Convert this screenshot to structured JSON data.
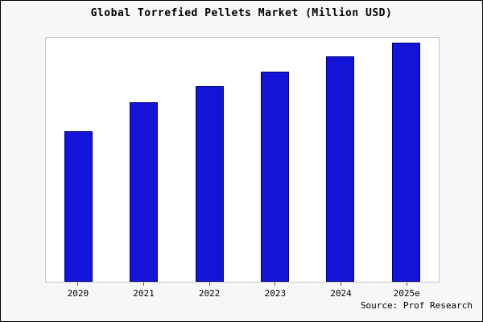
{
  "chart_data": {
    "type": "bar",
    "title": "Global Torrefied Pellets Market (Million USD)",
    "categories": [
      "2020",
      "2021",
      "2022",
      "2023",
      "2024",
      "2025e"
    ],
    "values": [
      62.8,
      75.2,
      81.9,
      87.9,
      94.3,
      100
    ],
    "xlabel": "",
    "ylabel": "",
    "ylim": [
      0,
      102
    ],
    "grid": false,
    "legend": "none",
    "bar_color": "#1414d9",
    "bar_border_color": "#000080"
  },
  "footer": {
    "source": "Source: Prof Research"
  },
  "colors": {
    "background": "#f7f7f7",
    "plot_background": "#ffffff",
    "frame_border": "#000000",
    "plot_border": "#c8c8c8"
  }
}
